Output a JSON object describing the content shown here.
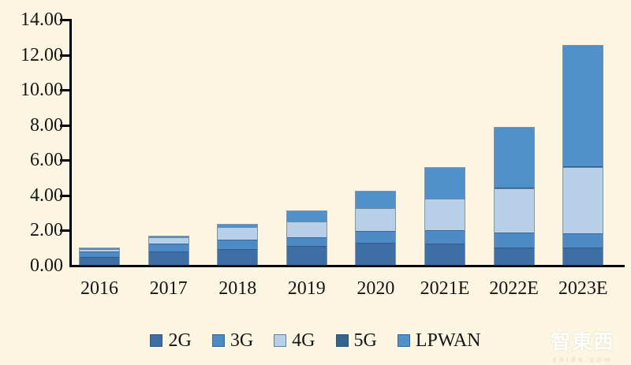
{
  "background_color": "#fbf5e2",
  "chart_data": {
    "type": "bar",
    "stacked": true,
    "title": "",
    "xlabel": "",
    "ylabel": "",
    "categories": [
      "2016",
      "2017",
      "2018",
      "2019",
      "2020",
      "2021E",
      "2022E",
      "2023E"
    ],
    "series": [
      {
        "name": "2G",
        "color": "#3d6fa5",
        "values": [
          0.5,
          0.8,
          0.95,
          1.1,
          1.3,
          1.25,
          1.0,
          1.0
        ]
      },
      {
        "name": "3G",
        "color": "#4e8ac6",
        "values": [
          0.35,
          0.5,
          0.55,
          0.5,
          0.65,
          0.75,
          0.85,
          0.8
        ]
      },
      {
        "name": "4G",
        "color": "#b8cfe8",
        "values": [
          0.15,
          0.35,
          0.75,
          0.95,
          1.35,
          1.85,
          2.55,
          3.8
        ]
      },
      {
        "name": "5G",
        "color": "#35658f",
        "values": [
          0.0,
          0.0,
          0.0,
          0.0,
          0.0,
          0.0,
          0.05,
          0.05
        ]
      },
      {
        "name": "LPWAN",
        "color": "#5191cb",
        "values": [
          0.05,
          0.05,
          0.15,
          0.6,
          0.95,
          1.75,
          3.45,
          6.9
        ]
      }
    ],
    "totals": [
      1.05,
      1.7,
      2.4,
      3.15,
      4.25,
      5.6,
      7.9,
      12.55
    ],
    "ylim": [
      0,
      14
    ],
    "y_ticks": [
      "0.00",
      "2.00",
      "4.00",
      "6.00",
      "8.00",
      "10.00",
      "12.00",
      "14.00"
    ],
    "grid": false,
    "legend_position": "bottom"
  },
  "watermark": {
    "line1": "智東西",
    "line2": "zhidx.com"
  }
}
